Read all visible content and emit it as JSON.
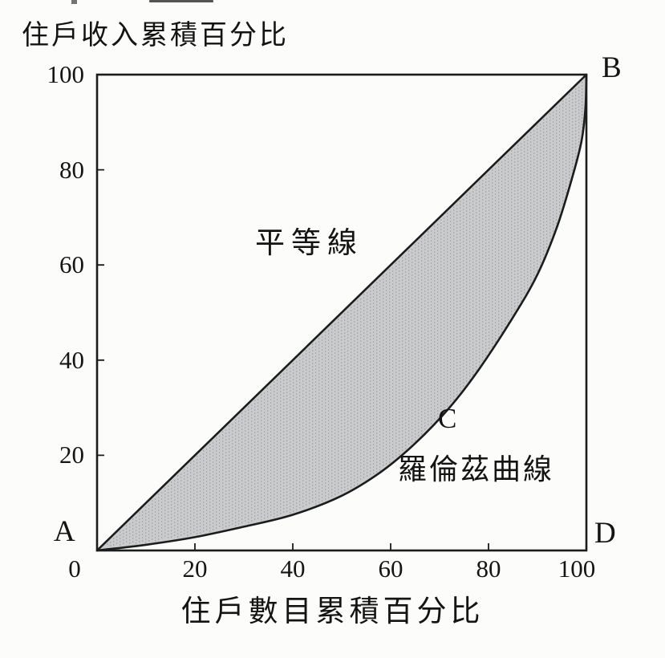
{
  "page": {
    "background_color": "#fcfcfa",
    "ink_color": "#1c1c1c"
  },
  "chart_data": {
    "type": "area",
    "subject": "lorenz-curve-diagram",
    "y_axis_title": "住戶收入累積百分比",
    "x_axis_title": "住戶數目累積百分比",
    "x_ticks": [
      0,
      20,
      40,
      60,
      80,
      100
    ],
    "y_ticks": [
      0,
      20,
      40,
      60,
      80,
      100
    ],
    "xlim": [
      0,
      100
    ],
    "ylim": [
      0,
      100
    ],
    "grid": false,
    "legend": "none",
    "origin_label": "0",
    "corners": {
      "origin": "A",
      "top_right": "B",
      "bottom_right": "D"
    },
    "equality_line": {
      "label": "平等線",
      "from": [
        0,
        0
      ],
      "to": [
        100,
        100
      ]
    },
    "lorenz_curve": {
      "point_label": "C",
      "label": "羅倫茲曲線",
      "points": [
        [
          0,
          0
        ],
        [
          10,
          1.2
        ],
        [
          20,
          2.8
        ],
        [
          30,
          5
        ],
        [
          40,
          7.5
        ],
        [
          50,
          11.5
        ],
        [
          58,
          16.5
        ],
        [
          65,
          22.5
        ],
        [
          72,
          30
        ],
        [
          78,
          38
        ],
        [
          85,
          49
        ],
        [
          90,
          58
        ],
        [
          94,
          68
        ],
        [
          97,
          78
        ],
        [
          99,
          86
        ],
        [
          99.8,
          93
        ],
        [
          100,
          100
        ]
      ]
    },
    "shaded_area": {
      "description": "area between equality line and Lorenz curve",
      "fill_color": "#c9cbcd",
      "dot_color": "#63656c"
    },
    "line_color": "#1c1c1c"
  }
}
